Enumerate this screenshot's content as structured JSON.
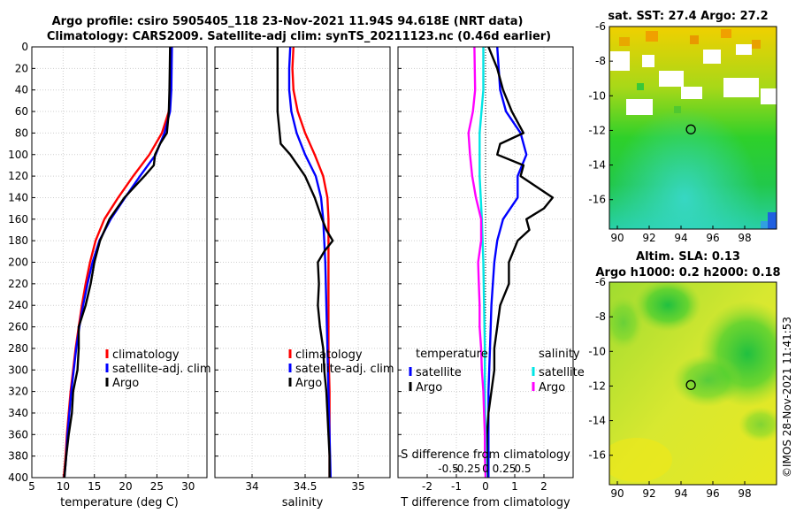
{
  "title": {
    "line1": "Argo profile: csiro 5905405_118 23-Nov-2021 11.94S 94.618E (NRT data)",
    "line2": "Climatology: CARS2009. Satellite-adj clim: synTS_20211123.nc (0.46d earlier)"
  },
  "side_label": "©IMOS 28-Nov-2021 11:41:53",
  "colors": {
    "climatology": "#ff0000",
    "satellite": "#0000ff",
    "argo": "#000000",
    "salinity_diff": "#ff00ff",
    "salinity_sat": "#00e5e5"
  },
  "chart_data": [
    {
      "id": "temperature",
      "type": "line",
      "xlabel": "temperature (deg C)",
      "ylabel": "",
      "xlim": [
        5,
        33
      ],
      "ylim": [
        400,
        0
      ],
      "xticks": [
        5,
        10,
        15,
        20,
        25,
        30
      ],
      "yticks": [
        0,
        20,
        40,
        60,
        80,
        100,
        120,
        140,
        160,
        180,
        200,
        220,
        240,
        260,
        280,
        300,
        320,
        340,
        360,
        380,
        400
      ],
      "grid": true,
      "legend_position": "bottom-right",
      "series": [
        {
          "name": "climatology",
          "color": "#ff0000",
          "depth": [
            0,
            40,
            60,
            80,
            100,
            120,
            140,
            160,
            180,
            200,
            220,
            240,
            260,
            280,
            300,
            320,
            340,
            360,
            380,
            400
          ],
          "values": [
            27.3,
            27.2,
            26.9,
            25.8,
            23.8,
            21.2,
            18.8,
            16.6,
            15.2,
            14.3,
            13.6,
            13.0,
            12.5,
            12.0,
            11.6,
            11.2,
            10.9,
            10.6,
            10.4,
            10.1
          ]
        },
        {
          "name": "satellite-adj. clim",
          "color": "#0000ff",
          "depth": [
            0,
            40,
            60,
            80,
            100,
            120,
            140,
            160,
            180,
            200,
            220,
            240,
            260,
            280,
            300,
            320,
            340,
            360,
            380,
            400
          ],
          "values": [
            27.4,
            27.3,
            27.1,
            26.2,
            24.8,
            22.3,
            19.9,
            17.6,
            15.8,
            14.7,
            13.9,
            13.2,
            12.6,
            12.1,
            11.7,
            11.3,
            11.0,
            10.7,
            10.5,
            10.2
          ]
        },
        {
          "name": "Argo",
          "color": "#000000",
          "depth": [
            0,
            40,
            60,
            80,
            90,
            100,
            110,
            120,
            140,
            160,
            180,
            200,
            220,
            240,
            260,
            280,
            300,
            320,
            340,
            360,
            380,
            400
          ],
          "values": [
            27.1,
            27.0,
            26.9,
            26.6,
            25.5,
            24.7,
            24.5,
            23.0,
            19.8,
            17.4,
            15.9,
            15.0,
            14.4,
            13.6,
            12.5,
            12.5,
            12.3,
            11.6,
            11.4,
            10.9,
            10.5,
            10.2
          ]
        }
      ]
    },
    {
      "id": "salinity",
      "type": "line",
      "xlabel": "salinity",
      "ylabel": "",
      "xlim": [
        33.65,
        35.3
      ],
      "ylim": [
        400,
        0
      ],
      "xticks": [
        34,
        34.5,
        35
      ],
      "grid": true,
      "legend_position": "bottom-right",
      "series": [
        {
          "name": "climatology",
          "color": "#ff0000",
          "depth": [
            0,
            20,
            40,
            60,
            80,
            100,
            120,
            140,
            160,
            180,
            200,
            240,
            280,
            320,
            360,
            400
          ],
          "values": [
            34.39,
            34.38,
            34.39,
            34.43,
            34.5,
            34.59,
            34.67,
            34.71,
            34.72,
            34.72,
            34.72,
            34.72,
            34.72,
            34.73,
            34.73,
            34.73
          ]
        },
        {
          "name": "satellite-adj. clim",
          "color": "#0000ff",
          "depth": [
            0,
            20,
            40,
            60,
            80,
            100,
            120,
            140,
            160,
            180,
            200,
            240,
            280,
            320,
            360,
            400
          ],
          "values": [
            34.36,
            34.35,
            34.35,
            34.37,
            34.42,
            34.5,
            34.6,
            34.65,
            34.67,
            34.68,
            34.69,
            34.7,
            34.71,
            34.72,
            34.73,
            34.74
          ]
        },
        {
          "name": "Argo",
          "color": "#000000",
          "depth": [
            0,
            20,
            40,
            60,
            80,
            90,
            100,
            120,
            140,
            160,
            170,
            180,
            190,
            200,
            220,
            240,
            260,
            280,
            300,
            320,
            340,
            360,
            380,
            400
          ],
          "values": [
            34.24,
            34.24,
            34.24,
            34.24,
            34.26,
            34.27,
            34.36,
            34.5,
            34.59,
            34.66,
            34.7,
            34.76,
            34.68,
            34.62,
            34.63,
            34.62,
            34.64,
            34.67,
            34.68,
            34.7,
            34.71,
            34.72,
            34.73,
            34.73
          ]
        }
      ]
    },
    {
      "id": "difference",
      "type": "line",
      "xlabel": "T difference from climatology",
      "xlabel2": "S difference from climatology",
      "xlim": [
        -3,
        3
      ],
      "ylim": [
        400,
        0
      ],
      "xticks": [
        -2,
        -1,
        0,
        1,
        2
      ],
      "xticks2": [
        "-0.5",
        "-0.25",
        "0",
        "0.25",
        "0.5"
      ],
      "grid": true,
      "legend_title_t": "temperature",
      "legend_title_s": "salinity",
      "series": [
        {
          "name": "satellite",
          "group": "temperature",
          "color": "#0000ff",
          "depth": [
            0,
            40,
            60,
            80,
            100,
            120,
            140,
            160,
            180,
            200,
            240,
            280,
            320,
            360,
            400
          ],
          "values": [
            0.4,
            0.5,
            0.7,
            1.2,
            1.4,
            1.1,
            1.1,
            0.6,
            0.4,
            0.3,
            0.2,
            0.15,
            0.1,
            0.1,
            0.1
          ]
        },
        {
          "name": "Argo",
          "group": "temperature",
          "color": "#000000",
          "depth": [
            0,
            20,
            40,
            60,
            80,
            90,
            100,
            110,
            120,
            140,
            150,
            160,
            170,
            180,
            200,
            220,
            240,
            260,
            280,
            300,
            320,
            340,
            360,
            380,
            400
          ],
          "values": [
            0.1,
            0.4,
            0.6,
            0.9,
            1.3,
            0.5,
            0.4,
            1.3,
            1.2,
            2.3,
            2.0,
            1.4,
            1.5,
            1.1,
            0.8,
            0.8,
            0.5,
            0.4,
            0.3,
            0.3,
            0.2,
            0.1,
            0.05,
            0.05,
            0.05
          ]
        },
        {
          "name": "satellite",
          "group": "salinity",
          "color": "#00e5e5",
          "depth": [
            0,
            40,
            80,
            120,
            160,
            200,
            240,
            280,
            320,
            360,
            400
          ],
          "values": [
            -0.03,
            -0.03,
            -0.08,
            -0.08,
            -0.05,
            -0.03,
            -0.02,
            -0.01,
            -0.01,
            0.0,
            0.01
          ]
        },
        {
          "name": "Argo",
          "group": "salinity",
          "color": "#ff00ff",
          "depth": [
            0,
            40,
            60,
            80,
            100,
            120,
            140,
            160,
            180,
            200,
            220,
            240,
            260,
            280,
            300,
            320,
            340,
            360,
            380,
            400
          ],
          "values": [
            -0.15,
            -0.14,
            -0.17,
            -0.23,
            -0.21,
            -0.18,
            -0.13,
            -0.06,
            -0.06,
            -0.1,
            -0.09,
            -0.08,
            -0.08,
            -0.06,
            -0.05,
            -0.03,
            -0.02,
            -0.01,
            -0.01,
            0.0
          ]
        }
      ]
    },
    {
      "id": "sst_map",
      "type": "heatmap",
      "title": "sat. SST: 27.4 Argo: 27.2",
      "xlim": [
        89.5,
        100
      ],
      "ylim": [
        -17.7,
        -6
      ],
      "xticks": [
        90,
        92,
        94,
        96,
        98
      ],
      "yticks": [
        -6,
        -8,
        -10,
        -12,
        -14,
        -16
      ],
      "marker": {
        "lon": 94.618,
        "lat": -11.94
      }
    },
    {
      "id": "sla_map",
      "type": "heatmap",
      "title": "Altim. SLA: 0.13",
      "subtitle": "Argo h1000: 0.2 h2000: 0.18",
      "xlim": [
        89.5,
        100
      ],
      "ylim": [
        -17.7,
        -6
      ],
      "xticks": [
        90,
        92,
        94,
        96,
        98
      ],
      "yticks": [
        -6,
        -8,
        -10,
        -12,
        -14,
        -16
      ],
      "marker": {
        "lon": 94.618,
        "lat": -11.94
      }
    }
  ]
}
